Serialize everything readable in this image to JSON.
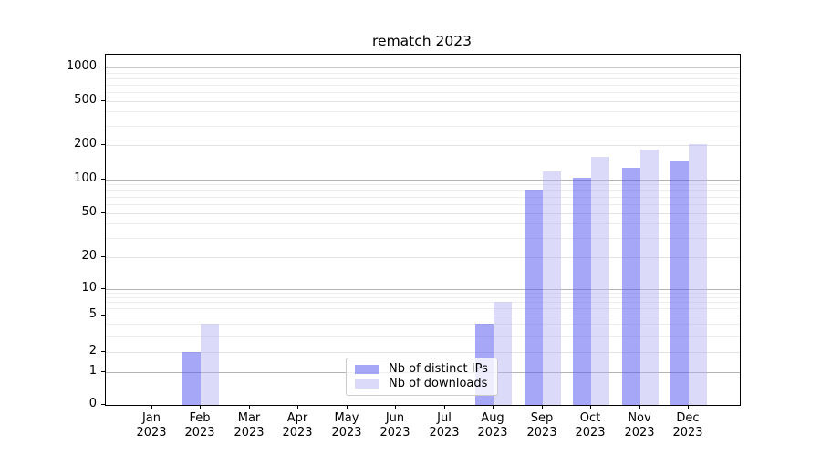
{
  "title": "rematch 2023",
  "legend": {
    "items": [
      {
        "label": "Nb of distinct IPs",
        "color": "rgba(87,87,241,0.52)"
      },
      {
        "label": "Nb of downloads",
        "color": "rgba(177,177,243,0.46)"
      }
    ]
  },
  "colors": {
    "bar_distinct_ips": "rgba(87,87,241,0.52)",
    "bar_downloads": "rgba(177,177,243,0.46)",
    "grid_major": "#b4b4b4",
    "grid_top_decade": "#c9c9c9",
    "grid_labeled": "#e3e3e3",
    "grid_minor": "#ededed",
    "spine": "#000000"
  },
  "chart_data": {
    "type": "bar",
    "title": "rematch 2023",
    "categories": [
      "Jan 2023",
      "Feb 2023",
      "Mar 2023",
      "Apr 2023",
      "May 2023",
      "Jun 2023",
      "Jul 2023",
      "Aug 2023",
      "Sep 2023",
      "Oct 2023",
      "Nov 2023",
      "Dec 2023"
    ],
    "x_tick_line1": [
      "Jan",
      "Feb",
      "Mar",
      "Apr",
      "May",
      "Jun",
      "Jul",
      "Aug",
      "Sep",
      "Oct",
      "Nov",
      "Dec"
    ],
    "x_tick_line2": [
      "2023",
      "2023",
      "2023",
      "2023",
      "2023",
      "2023",
      "2023",
      "2023",
      "2023",
      "2023",
      "2023",
      "2023"
    ],
    "series": [
      {
        "name": "Nb of distinct IPs",
        "values": [
          0,
          2,
          0,
          0,
          0,
          0,
          0,
          4,
          81,
          103,
          127,
          146
        ]
      },
      {
        "name": "Nb of downloads",
        "values": [
          0,
          4,
          0,
          0,
          0,
          0,
          0,
          7,
          118,
          156,
          182,
          203
        ]
      }
    ],
    "yticks": [
      0,
      1,
      2,
      5,
      10,
      20,
      50,
      100,
      200,
      500,
      1000
    ],
    "ylim": [
      0,
      1300
    ],
    "yscale": "symlog",
    "grid": true,
    "legend_position": "lower center",
    "xlabel": "",
    "ylabel": ""
  }
}
